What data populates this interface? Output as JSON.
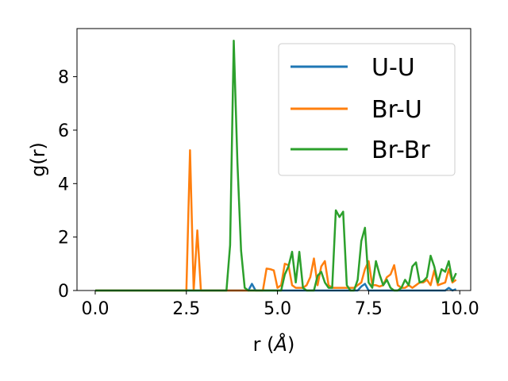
{
  "chart_data": {
    "type": "line",
    "xlabel_main": "r (",
    "xlabel_unit": "Å",
    "xlabel_close": ")",
    "ylabel": "g(r)",
    "xlim": [
      -0.5,
      10.3
    ],
    "ylim": [
      0,
      9.8
    ],
    "xticks": [
      0.0,
      2.5,
      5.0,
      7.5,
      10.0
    ],
    "xtick_labels": [
      "0.0",
      "2.5",
      "5.0",
      "7.5",
      "10.0"
    ],
    "yticks": [
      0,
      2,
      4,
      6,
      8
    ],
    "ytick_labels": [
      "0",
      "2",
      "4",
      "6",
      "8"
    ],
    "grid": false,
    "legend_position": "upper-right",
    "series": [
      {
        "name": "U-U",
        "color": "#1f77b4",
        "x": [
          0.0,
          4.2,
          4.3,
          4.4,
          5.0,
          7.2,
          7.3,
          7.4,
          7.5,
          9.6,
          9.7,
          9.8,
          9.9
        ],
        "y": [
          0,
          0,
          0.25,
          0,
          0,
          0,
          0.15,
          0.25,
          0,
          0,
          0.1,
          0,
          0.05
        ]
      },
      {
        "name": "Br-U",
        "color": "#ff7f0e",
        "x": [
          0.0,
          2.5,
          2.6,
          2.7,
          2.8,
          2.9,
          4.6,
          4.7,
          4.8,
          4.9,
          5.0,
          5.1,
          5.2,
          5.3,
          5.4,
          5.5,
          5.6,
          5.7,
          5.8,
          5.9,
          6.0,
          6.1,
          6.2,
          6.3,
          6.4,
          6.5,
          6.6,
          6.7,
          6.8,
          6.9,
          7.0,
          7.1,
          7.2,
          7.3,
          7.4,
          7.5,
          7.6,
          7.7,
          7.8,
          7.9,
          8.0,
          8.1,
          8.2,
          8.3,
          8.4,
          8.5,
          8.6,
          8.7,
          8.8,
          8.9,
          9.0,
          9.1,
          9.2,
          9.3,
          9.4,
          9.5,
          9.6,
          9.7,
          9.8,
          9.9
        ],
        "y": [
          0,
          0,
          5.25,
          0,
          2.25,
          0,
          0,
          0.82,
          0.8,
          0.75,
          0.1,
          0.2,
          1.0,
          0.95,
          0.2,
          0.1,
          0.1,
          0.1,
          0.2,
          0.5,
          1.2,
          0.2,
          0.9,
          1.1,
          0.2,
          0.1,
          0.1,
          0.1,
          0.1,
          0.1,
          0.1,
          0.1,
          0.2,
          0.3,
          0.8,
          1.1,
          0.2,
          0.2,
          0.15,
          0.2,
          0.5,
          0.6,
          0.95,
          0.2,
          0.1,
          0.1,
          0.2,
          0.1,
          0.2,
          0.3,
          0.3,
          0.4,
          0.2,
          0.75,
          0.2,
          0.25,
          0.3,
          0.8,
          0.3,
          0.4
        ]
      },
      {
        "name": "Br-Br",
        "color": "#2ca02c",
        "x": [
          0.0,
          3.6,
          3.7,
          3.8,
          3.9,
          4.0,
          4.1,
          4.2,
          5.1,
          5.2,
          5.3,
          5.4,
          5.5,
          5.6,
          5.7,
          5.8,
          5.9,
          6.0,
          6.1,
          6.2,
          6.3,
          6.4,
          6.5,
          6.6,
          6.7,
          6.8,
          6.9,
          7.0,
          7.1,
          7.2,
          7.3,
          7.4,
          7.5,
          7.6,
          7.7,
          7.8,
          7.9,
          8.0,
          8.1,
          8.2,
          8.3,
          8.4,
          8.5,
          8.6,
          8.7,
          8.8,
          8.9,
          9.0,
          9.1,
          9.2,
          9.3,
          9.4,
          9.5,
          9.6,
          9.7,
          9.8,
          9.9
        ],
        "y": [
          0,
          0,
          1.7,
          9.35,
          4.8,
          1.5,
          0.1,
          0,
          0,
          0.6,
          0.9,
          1.45,
          0.3,
          1.45,
          0.1,
          0,
          0,
          0,
          0.55,
          0.7,
          0.3,
          0.1,
          0.1,
          3.0,
          2.75,
          2.95,
          0.2,
          0,
          0,
          0.4,
          1.85,
          2.35,
          0.3,
          0.1,
          1.1,
          0.6,
          0.2,
          0.4,
          0.1,
          0,
          0,
          0.1,
          0.4,
          0.2,
          0.9,
          1.05,
          0.3,
          0.35,
          0.5,
          1.3,
          0.9,
          0.3,
          0.8,
          0.7,
          1.1,
          0.35,
          0.65
        ]
      }
    ]
  }
}
